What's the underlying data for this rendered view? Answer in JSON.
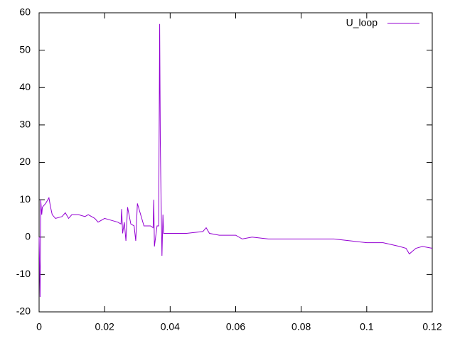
{
  "chart_data": {
    "type": "line",
    "x": [
      0,
      0.0003,
      0.0005,
      0.0008,
      0.001,
      0.002,
      0.003,
      0.0035,
      0.004,
      0.005,
      0.007,
      0.008,
      0.009,
      0.01,
      0.012,
      0.014,
      0.015,
      0.017,
      0.018,
      0.02,
      0.022,
      0.024,
      0.025,
      0.0252,
      0.0255,
      0.026,
      0.0265,
      0.027,
      0.028,
      0.029,
      0.0295,
      0.03,
      0.032,
      0.034,
      0.0348,
      0.035,
      0.0352,
      0.036,
      0.0365,
      0.0368,
      0.037,
      0.0372,
      0.0375,
      0.0378,
      0.038,
      0.0385,
      0.04,
      0.045,
      0.05,
      0.051,
      0.052,
      0.055,
      0.06,
      0.062,
      0.065,
      0.07,
      0.075,
      0.08,
      0.085,
      0.09,
      0.095,
      0.1,
      0.105,
      0.11,
      0.112,
      0.113,
      0.115,
      0.117,
      0.12
    ],
    "series": [
      {
        "name": "U_loop",
        "color": "#9400d3",
        "values": [
          0,
          -16,
          10,
          6,
          8,
          9,
          10.5,
          8,
          6,
          5,
          5.5,
          6.5,
          5,
          6,
          6,
          5.5,
          6,
          5,
          4,
          5,
          4.5,
          4,
          3.5,
          7.5,
          1,
          4,
          -1,
          8,
          3.5,
          3,
          -1,
          9,
          3,
          3,
          2.5,
          10,
          -2.5,
          3,
          3,
          57,
          25,
          12,
          -5,
          6,
          1,
          1,
          1,
          1,
          1.5,
          2.5,
          1,
          0.5,
          0.5,
          -0.5,
          0,
          -0.5,
          -0.5,
          -0.5,
          -0.5,
          -0.5,
          -1,
          -1.5,
          -1.5,
          -2.5,
          -3,
          -4.5,
          -3,
          -2.5,
          -3
        ]
      }
    ],
    "xlim": [
      0,
      0.12
    ],
    "xticks": [
      0,
      0.02,
      0.04,
      0.06,
      0.08,
      0.1,
      0.12
    ],
    "ylim": [
      -20,
      60
    ],
    "yticks": [
      -20,
      -10,
      0,
      10,
      20,
      30,
      40,
      50,
      60
    ],
    "legend": "top-right"
  }
}
